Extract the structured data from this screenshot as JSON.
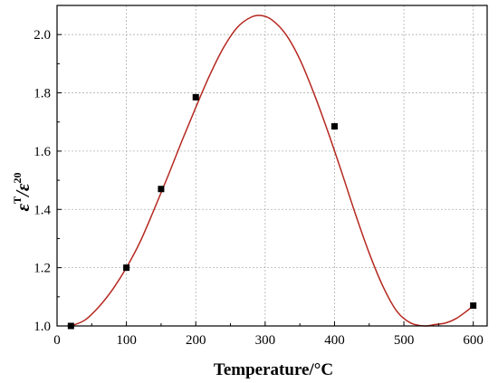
{
  "chart_data": {
    "type": "scatter",
    "title": "",
    "xlabel": "Temperature/°C",
    "ylabel": {
      "numerator_symbol": "ε",
      "numerator_superscript": "T",
      "divider": "/",
      "denominator_symbol": "ε",
      "denominator_superscript": "20"
    },
    "xlim": [
      0,
      620
    ],
    "ylim": [
      1.0,
      2.1
    ],
    "x_ticks": [
      0,
      100,
      200,
      300,
      400,
      500,
      600
    ],
    "y_ticks": [
      1.0,
      1.2,
      1.4,
      1.6,
      1.8,
      2.0
    ],
    "x_tick_labels": [
      "0",
      "100",
      "200",
      "300",
      "400",
      "500",
      "600"
    ],
    "y_tick_labels": [
      "1.0",
      "1.2",
      "1.4",
      "1.6",
      "1.8",
      "2.0"
    ],
    "grid": true,
    "legend": "none",
    "series": [
      {
        "kind": "points",
        "marker": "square",
        "color": "#000000",
        "x": [
          20,
          100,
          150,
          200,
          400,
          600
        ],
        "y": [
          1.0,
          1.2,
          1.47,
          1.785,
          1.685,
          1.07
        ]
      },
      {
        "kind": "fitted-curve",
        "color": "#b5271f",
        "x": [
          20,
          40,
          60,
          80,
          100,
          120,
          140,
          160,
          180,
          200,
          220,
          240,
          260,
          280,
          295,
          310,
          330,
          350,
          370,
          390,
          410,
          430,
          450,
          470,
          490,
          510,
          530,
          545,
          560,
          575,
          590,
          600
        ],
        "y": [
          1.0,
          1.02,
          1.065,
          1.125,
          1.2,
          1.29,
          1.4,
          1.515,
          1.635,
          1.75,
          1.86,
          1.955,
          2.025,
          2.06,
          2.065,
          2.05,
          2.0,
          1.915,
          1.8,
          1.67,
          1.53,
          1.385,
          1.25,
          1.135,
          1.05,
          1.01,
          1.0,
          1.005,
          1.01,
          1.025,
          1.05,
          1.07
        ]
      }
    ]
  }
}
